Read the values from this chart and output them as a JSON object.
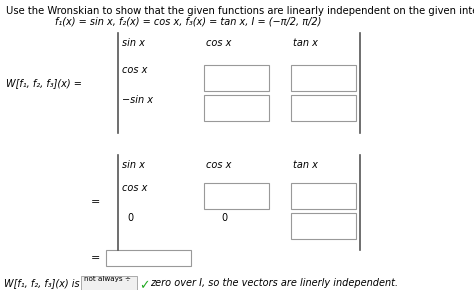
{
  "bg_color": "#ffffff",
  "title_line1": "Use the Wronskian to show that the given functions are linearly independent on the given interval I.",
  "title_line2": "f₁(x) = sin x, f₂(x) = cos x, f₃(x) = tan x, I = (−π/2, π/2)",
  "W_label": "W[f₁, f₂, f₃](x) =",
  "bottom_line1": "W[f₁, f₂, f₃](x) is",
  "dropdown_text": "not always ÷",
  "check_color": "#22aa22",
  "end_text": "zero over I, so the vectors are linerly independent.",
  "font_size": 7.0,
  "title_font_size": 7.2,
  "math_font_size": 7.0
}
